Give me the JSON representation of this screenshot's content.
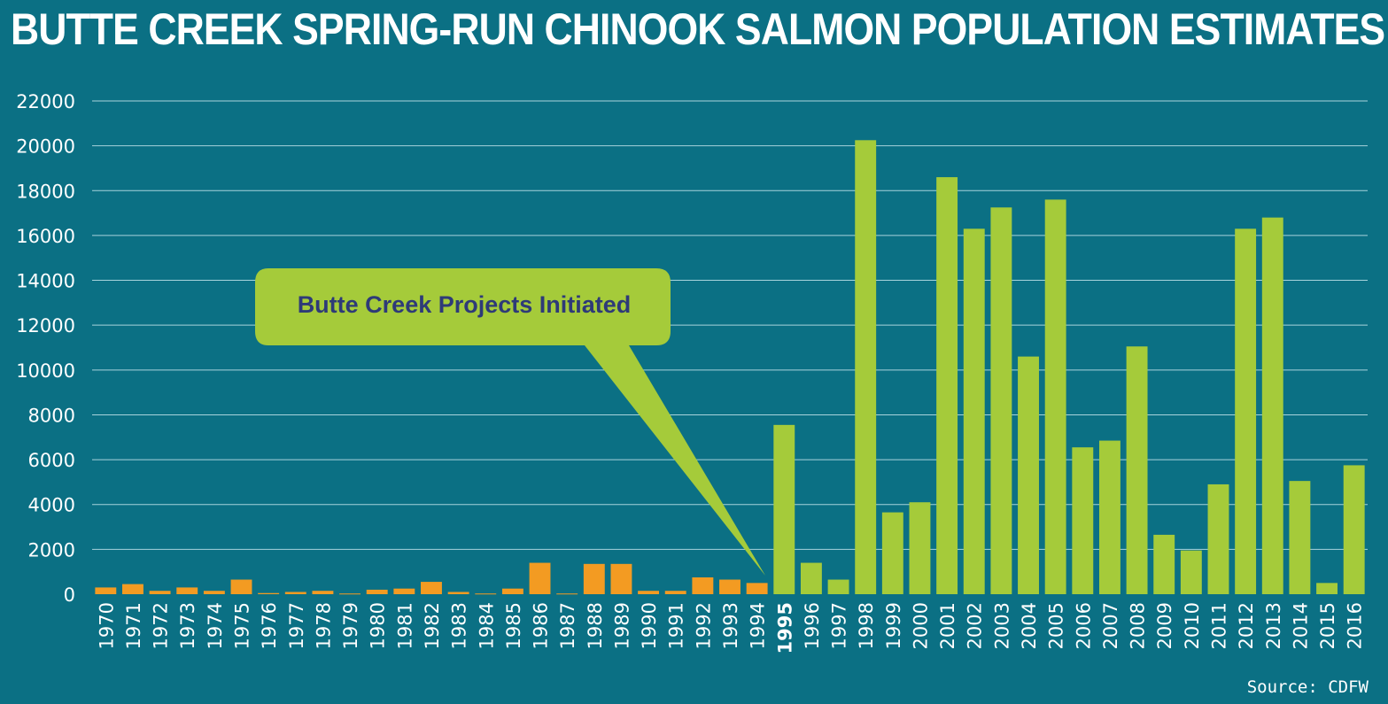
{
  "title": "BUTTE CREEK SPRING-RUN CHINOOK SALMON POPULATION ESTIMATES",
  "source": "Source: CDFW",
  "colors": {
    "background": "#0b7084",
    "before_projects": "#f39b22",
    "after_projects": "#a5cb3a",
    "callout_text": "#2e3a78",
    "gridline": "#a8d3dc"
  },
  "chart_data": {
    "type": "bar",
    "title": "BUTTE CREEK SPRING-RUN CHINOOK SALMON POPULATION ESTIMATES",
    "xlabel": "",
    "ylabel": "",
    "ylim": [
      0,
      22000
    ],
    "yticks": [
      0,
      2000,
      4000,
      6000,
      8000,
      10000,
      12000,
      14000,
      16000,
      18000,
      20000,
      22000
    ],
    "grid": true,
    "highlight_category": "1995",
    "categories": [
      "1970",
      "1971",
      "1972",
      "1973",
      "1974",
      "1975",
      "1976",
      "1977",
      "1978",
      "1979",
      "1980",
      "1981",
      "1982",
      "1983",
      "1984",
      "1985",
      "1986",
      "1987",
      "1988",
      "1989",
      "1990",
      "1991",
      "1992",
      "1993",
      "1994",
      "1995",
      "1996",
      "1997",
      "1998",
      "1999",
      "2000",
      "2001",
      "2002",
      "2003",
      "2004",
      "2005",
      "2006",
      "2007",
      "2008",
      "2009",
      "2010",
      "2011",
      "2012",
      "2013",
      "2014",
      "2015",
      "2016"
    ],
    "values": [
      300,
      450,
      150,
      300,
      150,
      650,
      50,
      100,
      150,
      30,
      200,
      250,
      550,
      100,
      30,
      250,
      1400,
      30,
      1350,
      1350,
      150,
      150,
      750,
      650,
      500,
      7550,
      1400,
      650,
      20250,
      3650,
      4100,
      18600,
      16300,
      17250,
      10600,
      17600,
      6550,
      6850,
      11050,
      2650,
      1950,
      4900,
      16300,
      16800,
      5050,
      500,
      5750
    ],
    "annotations": [
      {
        "text": "Butte Creek Projects Initiated",
        "points_to": "1995"
      }
    ]
  }
}
